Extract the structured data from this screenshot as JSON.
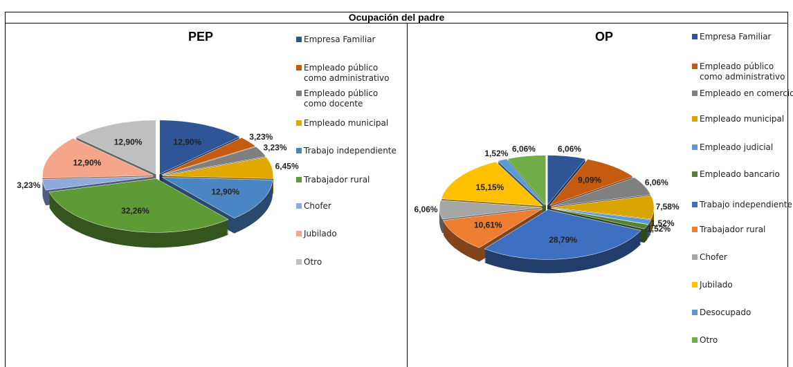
{
  "header": {
    "title": "Ocupación del padre"
  },
  "chart_data": [
    {
      "type": "pie",
      "title": "PEP",
      "categories": [
        "Empresa Familiar",
        "Empleado público como administrativo",
        "Empleado público como docente",
        "Empleado municipal",
        "Trabajo independiente",
        "Trabajador rural",
        "Chofer",
        "Jubilado",
        "Otro"
      ],
      "values": [
        12.9,
        3.23,
        3.23,
        6.45,
        12.9,
        32.26,
        3.23,
        12.9,
        12.9
      ],
      "value_labels": [
        "12,90%",
        "3,23%",
        "3,23%",
        "6,45%",
        "12,90%",
        "32,26%",
        "3,23%",
        "12,90%",
        "12,90%"
      ],
      "colors": [
        "#2f5597",
        "#c55a11",
        "#7f7f7f",
        "#e0a800",
        "#4a86c4",
        "#5e9a35",
        "#8faadc",
        "#f4a58a",
        "#bfbfbf"
      ]
    },
    {
      "type": "pie",
      "title": "OP",
      "categories": [
        "Empresa Familiar",
        "Empleado público como administrativo",
        "Empleado en comercio",
        "Empleado municipal",
        "Empleado judicial",
        "Empleado bancario",
        "Trabajo independiente",
        "Trabajador rural",
        "Chofer",
        "Jubilado",
        "Desocupado",
        "Otro"
      ],
      "values": [
        6.06,
        9.09,
        6.06,
        7.58,
        1.52,
        1.52,
        28.79,
        10.61,
        6.06,
        15.15,
        1.52,
        6.06
      ],
      "value_labels": [
        "6,06%",
        "9,09%",
        "6,06%",
        "7,58%",
        "1,52%",
        "1,52%",
        "28,79%",
        "10,61%",
        "6,06%",
        "15,15%",
        "1,52%",
        "6,06%"
      ],
      "colors": [
        "#2f5597",
        "#c55a11",
        "#808080",
        "#d9a300",
        "#5b9bd5",
        "#548235",
        "#3f6fc0",
        "#ed7d31",
        "#a5a5a5",
        "#ffc000",
        "#5b9bd5",
        "#70ad47"
      ]
    }
  ]
}
